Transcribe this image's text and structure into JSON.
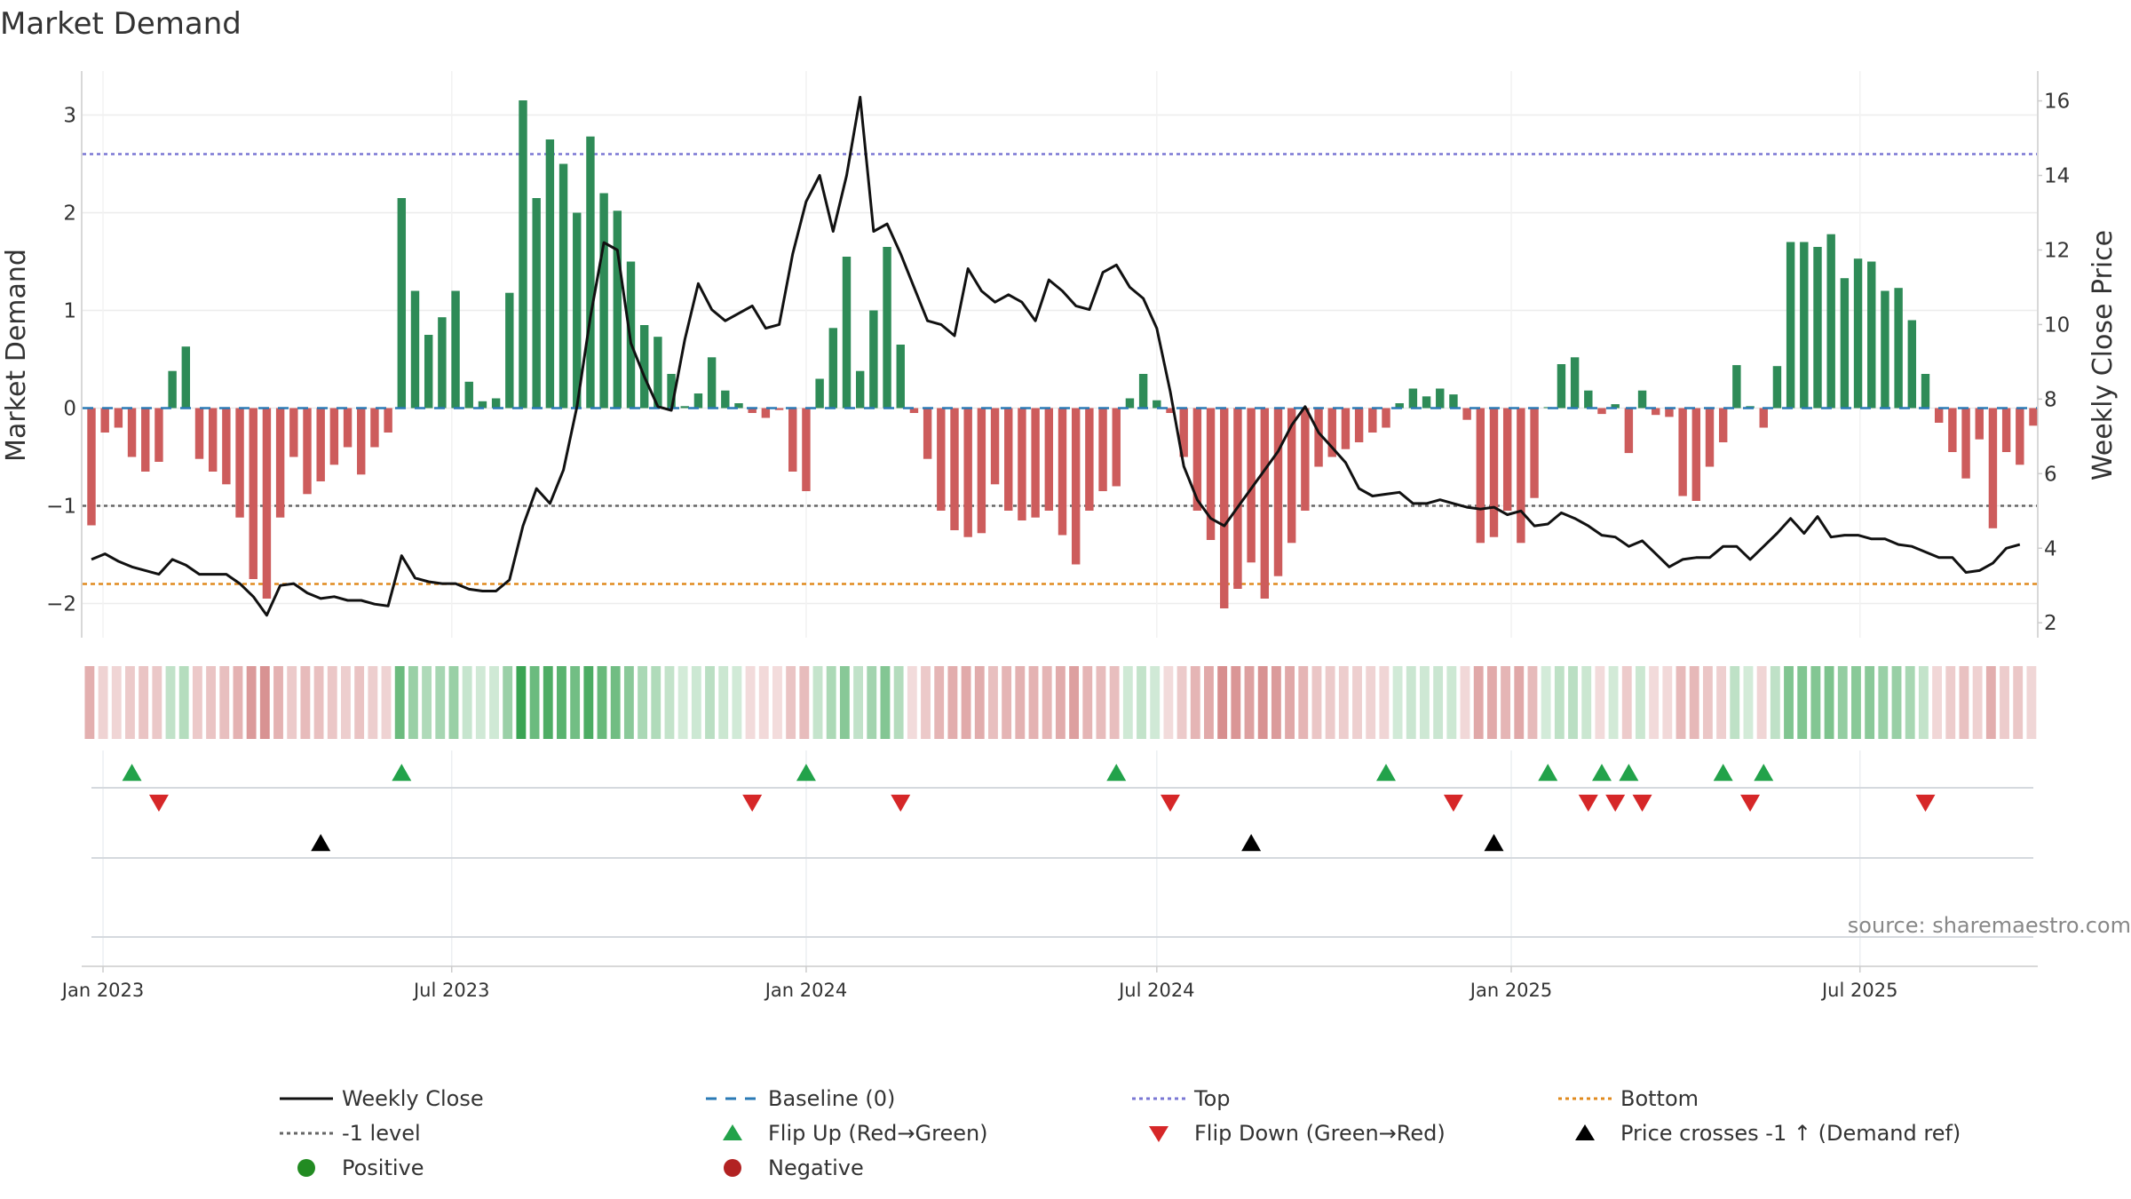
{
  "chart_data": {
    "type": "bar",
    "title": "Market Demand",
    "ylabel": "Market Demand",
    "y2label": "Weekly Close Price",
    "ylim": [
      -2.35,
      3.45
    ],
    "y2lim": [
      1.6,
      16.8
    ],
    "yticks": [
      3,
      2,
      1,
      0,
      -1,
      -2
    ],
    "y2ticks": [
      16,
      14,
      12,
      10,
      8,
      6,
      4,
      2
    ],
    "reference_lines": {
      "top": 2.6,
      "minus_one": -1,
      "bottom": -1.8,
      "baseline": 0
    },
    "x_start": "2022-12-26",
    "x_end": "2025-09-29",
    "date_ticks": [
      {
        "label": "Jan 2023",
        "date": "2023-01-01"
      },
      {
        "label": "Jul 2023",
        "date": "2023-07-01"
      },
      {
        "label": "Jan 2024",
        "date": "2024-01-01"
      },
      {
        "label": "Jul 2024",
        "date": "2024-07-01"
      },
      {
        "label": "Jan 2025",
        "date": "2025-01-01"
      },
      {
        "label": "Jul 2025",
        "date": "2025-07-01"
      }
    ],
    "demand_values": [
      -1.2,
      -0.25,
      -0.2,
      -0.5,
      -0.65,
      -0.55,
      0.38,
      0.63,
      -0.52,
      -0.65,
      -0.78,
      -1.12,
      -1.75,
      -1.95,
      -1.12,
      -0.5,
      -0.88,
      -0.75,
      -0.58,
      -0.4,
      -0.68,
      -0.4,
      -0.25,
      2.15,
      1.2,
      0.75,
      0.93,
      1.2,
      0.27,
      0.07,
      0.1,
      1.18,
      3.15,
      2.15,
      2.75,
      2.5,
      2.0,
      2.78,
      2.2,
      2.02,
      1.5,
      0.85,
      0.73,
      0.35,
      0.02,
      0.15,
      0.52,
      0.18,
      0.05,
      -0.05,
      -0.1,
      -0.02,
      -0.65,
      -0.85,
      0.3,
      0.82,
      1.55,
      0.38,
      1.0,
      1.65,
      0.65,
      -0.05,
      -0.52,
      -1.05,
      -1.25,
      -1.32,
      -1.28,
      -0.78,
      -1.05,
      -1.15,
      -1.12,
      -1.05,
      -1.3,
      -1.6,
      -1.05,
      -0.85,
      -0.8,
      0.1,
      0.35,
      0.08,
      -0.05,
      -0.5,
      -1.05,
      -1.35,
      -2.05,
      -1.85,
      -1.58,
      -1.95,
      -1.72,
      -1.38,
      -1.05,
      -0.6,
      -0.5,
      -0.42,
      -0.35,
      -0.25,
      -0.2,
      0.05,
      0.2,
      0.12,
      0.2,
      0.14,
      -0.12,
      -1.38,
      -1.32,
      -1.05,
      -1.38,
      -0.92,
      0.01,
      0.45,
      0.52,
      0.18,
      -0.06,
      0.04,
      -0.46,
      0.18,
      -0.07,
      -0.09,
      -0.9,
      -0.95,
      -0.6,
      -0.35,
      0.44,
      0.02,
      -0.2,
      0.43,
      1.7,
      1.7,
      1.65,
      1.78,
      1.33,
      1.53,
      1.5,
      1.2,
      1.23,
      0.9,
      0.35,
      -0.15,
      -0.45,
      -0.72,
      -0.32,
      -1.23,
      -0.45,
      -0.58,
      -0.18
    ],
    "price_values": [
      3.7,
      3.85,
      3.65,
      3.5,
      3.4,
      3.3,
      3.7,
      3.55,
      3.3,
      3.3,
      3.3,
      3.05,
      2.7,
      2.2,
      3.0,
      3.05,
      2.8,
      2.65,
      2.7,
      2.6,
      2.6,
      2.5,
      2.45,
      3.8,
      3.2,
      3.1,
      3.05,
      3.05,
      2.9,
      2.85,
      2.85,
      3.15,
      4.6,
      5.6,
      5.2,
      6.1,
      7.8,
      10.2,
      12.2,
      12.0,
      9.5,
      8.6,
      7.8,
      7.7,
      9.6,
      11.1,
      10.4,
      10.1,
      10.3,
      10.5,
      9.9,
      10.0,
      11.9,
      13.3,
      14.0,
      12.5,
      14.0,
      16.1,
      12.5,
      12.7,
      11.9,
      11.0,
      10.1,
      10.0,
      9.7,
      11.5,
      10.9,
      10.6,
      10.8,
      10.6,
      10.1,
      11.2,
      10.9,
      10.5,
      10.4,
      11.4,
      11.6,
      11.0,
      10.7,
      9.9,
      8.2,
      6.2,
      5.3,
      4.8,
      4.6,
      5.1,
      5.6,
      6.1,
      6.6,
      7.3,
      7.8,
      7.1,
      6.7,
      6.3,
      5.6,
      5.4,
      5.45,
      5.5,
      5.2,
      5.2,
      5.3,
      5.2,
      5.1,
      5.05,
      5.1,
      4.9,
      5.0,
      4.6,
      4.65,
      4.95,
      4.8,
      4.6,
      4.35,
      4.3,
      4.05,
      4.2,
      3.85,
      3.5,
      3.7,
      3.75,
      3.75,
      4.05,
      4.05,
      3.7,
      4.05,
      4.4,
      4.8,
      4.4,
      4.85,
      4.3,
      4.35,
      4.35,
      4.25,
      4.25,
      4.1,
      4.05,
      3.9,
      3.75,
      3.75,
      3.35,
      3.4,
      3.6,
      4.0,
      4.1
    ],
    "flip_up_weeks": [
      3,
      23,
      53,
      76,
      96,
      108,
      112,
      114,
      121,
      124
    ],
    "flip_down_weeks": [
      5,
      49,
      60,
      80,
      101,
      111,
      113,
      115,
      123,
      136
    ],
    "price_cross_weeks": [
      17,
      86,
      104
    ],
    "source": "source: sharemaestro.com",
    "legend": [
      {
        "label": "Weekly Close",
        "symbol": "line",
        "color": "#111111"
      },
      {
        "label": "Baseline (0)",
        "symbol": "dash",
        "color": "#2a7ab5"
      },
      {
        "label": "Top",
        "symbol": "dotted",
        "color": "#7a77d4"
      },
      {
        "label": "Bottom",
        "symbol": "dotted",
        "color": "#e08a1e"
      },
      {
        "label": "-1 level",
        "symbol": "dotted",
        "color": "#666666"
      },
      {
        "label": "Flip Up (Red→Green)",
        "symbol": "tri-up",
        "color": "#22a24a"
      },
      {
        "label": "Flip Down (Green→Red)",
        "symbol": "tri-down",
        "color": "#d62728"
      },
      {
        "label": "Price crosses -1 ↑ (Demand ref)",
        "symbol": "tri-up",
        "color": "#000000"
      },
      {
        "label": "Positive",
        "symbol": "dot",
        "color": "#228b22"
      },
      {
        "label": "Negative",
        "symbol": "dot",
        "color": "#b22222"
      }
    ],
    "colors": {
      "positive_bar": "#2e8b57",
      "negative_bar": "#cd5c5c",
      "price_line": "#111111",
      "grid": "#ececec",
      "strip_positive": "#3aa453",
      "strip_negative": "#c86464"
    }
  }
}
